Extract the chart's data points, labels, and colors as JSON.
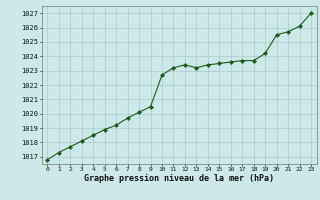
{
  "hours": [
    0,
    1,
    2,
    3,
    4,
    5,
    6,
    7,
    8,
    9,
    10,
    11,
    12,
    13,
    14,
    15,
    16,
    17,
    18,
    19,
    20,
    21,
    22,
    23
  ],
  "pressures": [
    1016.8,
    1017.3,
    1017.7,
    1018.1,
    1018.5,
    1018.9,
    1019.2,
    1019.7,
    1020.1,
    1020.5,
    1022.7,
    1023.2,
    1023.4,
    1023.2,
    1023.4,
    1023.5,
    1023.6,
    1023.7,
    1023.7,
    1024.2,
    1025.5,
    1025.7,
    1026.1,
    1027.0
  ],
  "ylim": [
    1016.5,
    1027.5
  ],
  "yticks": [
    1017,
    1018,
    1019,
    1020,
    1021,
    1022,
    1023,
    1024,
    1025,
    1026,
    1027
  ],
  "line_color": "#1a5c1a",
  "marker_color": "#1a5c1a",
  "bg_color": "#cce8e8",
  "grid_color": "#aacccc",
  "xlabel": "Graphe pression niveau de la mer (hPa)"
}
